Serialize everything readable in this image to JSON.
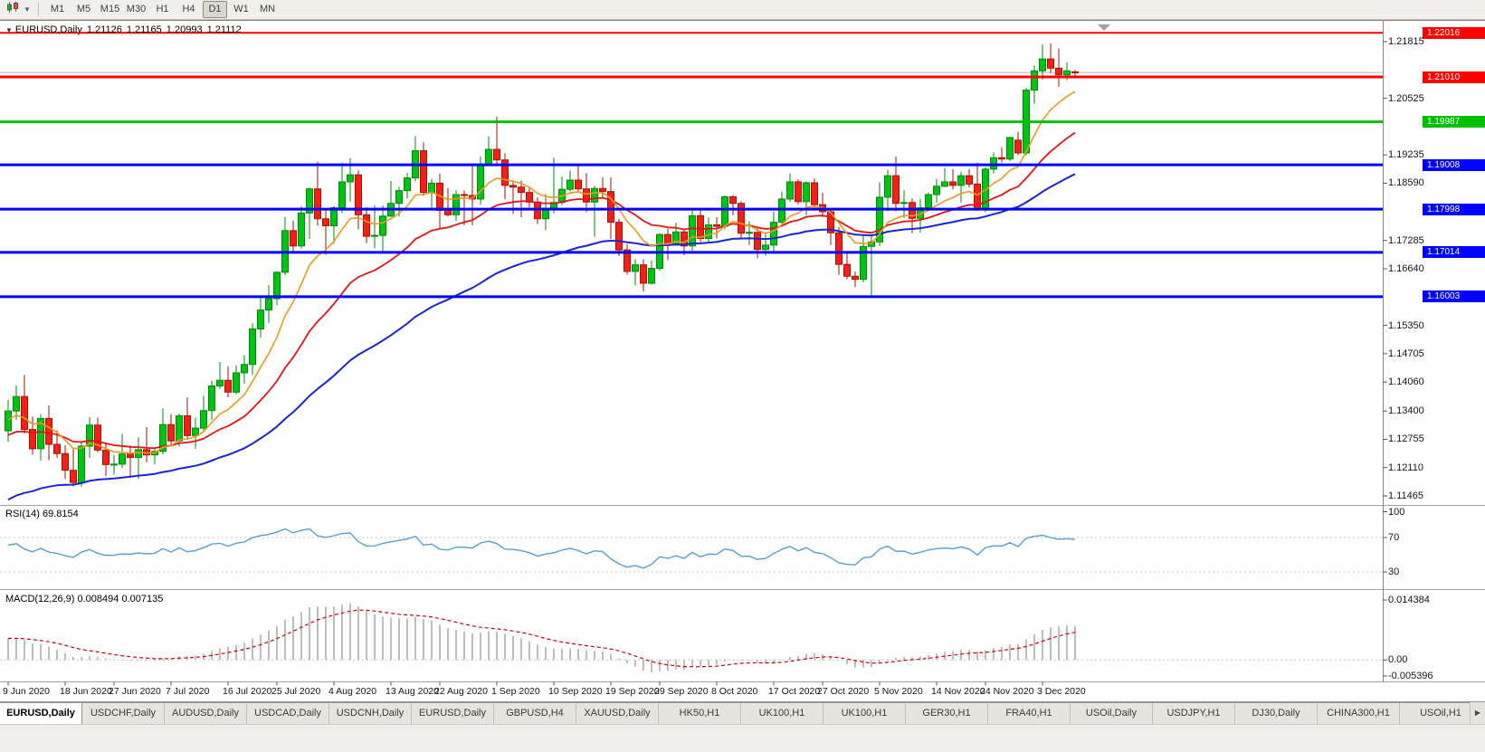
{
  "toolbar": {
    "chart_type_icon": "candlestick-chart-icon",
    "dropdown_icon": "caret-down",
    "timeframes": [
      {
        "label": "M1",
        "active": false
      },
      {
        "label": "M5",
        "active": false
      },
      {
        "label": "M15",
        "active": false
      },
      {
        "label": "M30",
        "active": false
      },
      {
        "label": "H1",
        "active": false
      },
      {
        "label": "H4",
        "active": false
      },
      {
        "label": "D1",
        "active": true
      },
      {
        "label": "W1",
        "active": false
      },
      {
        "label": "MN",
        "active": false
      }
    ]
  },
  "chart": {
    "dropdown_arrow": "▼",
    "symbol": "EURUSD,Daily",
    "open": "1.21126",
    "high": "1.21165",
    "low": "1.20993",
    "close": "1.21112"
  },
  "price_scale": {
    "ticks": [
      "1.21815",
      "1.20525",
      "1.19235",
      "1.18590",
      "1.17285",
      "1.16640",
      "1.15350",
      "1.14705",
      "1.14060",
      "1.13400",
      "1.12755",
      "1.12110",
      "1.11465"
    ]
  },
  "hlines": [
    {
      "price": 1.22016,
      "label": "1.22016",
      "color": "#ff0000",
      "width": 2
    },
    {
      "price": 1.2101,
      "label": "1.21010",
      "color": "#ff0000",
      "width": 3
    },
    {
      "price": 1.19987,
      "label": "1.19987",
      "color": "#00c000",
      "width": 3
    },
    {
      "price": 1.19008,
      "label": "1.19008",
      "color": "#0000ff",
      "width": 3
    },
    {
      "price": 1.17998,
      "label": "1.17998",
      "color": "#0000ff",
      "width": 3
    },
    {
      "price": 1.17014,
      "label": "1.17014",
      "color": "#0000ff",
      "width": 3
    },
    {
      "price": 1.16003,
      "label": "1.16003",
      "color": "#0000ff",
      "width": 3
    }
  ],
  "indicators": {
    "rsi": {
      "label": "RSI(14)",
      "value": "69.8154",
      "period": 14,
      "scale": [
        "100",
        "70",
        "30"
      ],
      "levels": [
        70,
        30
      ],
      "color": "#569fd3",
      "level_values": [
        100,
        70,
        30
      ]
    },
    "macd": {
      "label": "MACD(12,26,9)",
      "main_value": "0.008494",
      "signal_value": "0.007135",
      "fast": 12,
      "slow": 26,
      "signal": 9,
      "scale_top": "0.014384",
      "scale_zero": "0.00",
      "scale_bottom": "-0.005396",
      "scale_top_value": 0.014384,
      "scale_bottom_value": -0.005396,
      "histogram_color": "#a2a2a2",
      "signal_color": "#d40000"
    }
  },
  "chart_data": {
    "type": "candlestick",
    "symbol": "EURUSD",
    "timeframe": "Daily",
    "up_color": "#00c414",
    "up_stroke": "#008a0c",
    "down_color": "#f52015",
    "down_stroke": "#a81205",
    "bid_price": 1.21112,
    "bid_line_color": "#b6b6b6",
    "ylim": [
      1.1125,
      1.2224
    ],
    "date_labels": [
      "9 Jun 2020",
      "18 Jun 2020",
      "27 Jun 2020",
      "7 Jul 2020",
      "16 Jul 2020",
      "25 Jul 2020",
      "4 Aug 2020",
      "13 Aug 2020",
      "22 Aug 2020",
      "1 Sep 2020",
      "10 Sep 2020",
      "19 Sep 2020",
      "29 Sep 2020",
      "8 Oct 2020",
      "17 Oct 2020",
      "27 Oct 2020",
      "5 Nov 2020",
      "14 Nov 2020",
      "24 Nov 2020",
      "3 Dec 2020"
    ],
    "date_label_bar_indices": [
      0,
      7,
      13,
      20,
      27,
      33,
      40,
      47,
      53,
      60,
      67,
      74,
      80,
      87,
      94,
      100,
      107,
      114,
      120,
      127
    ],
    "moving_averages": [
      {
        "name": "ma-slow",
        "period": 50,
        "seed": 1.113,
        "color": "#1726cf",
        "width": 2
      },
      {
        "name": "ma-mid",
        "period": 22,
        "seed": 1.128,
        "color": "#e01616",
        "width": 1.8
      },
      {
        "name": "ma-fast",
        "period": 9,
        "seed": 1.1315,
        "color": "#ec9a1a",
        "width": 1.6
      }
    ],
    "ohlc": [
      [
        1.1295,
        1.1365,
        1.127,
        1.134
      ],
      [
        1.134,
        1.1398,
        1.132,
        1.1373
      ],
      [
        1.1373,
        1.1422,
        1.1288,
        1.1298
      ],
      [
        1.1298,
        1.1327,
        1.1241,
        1.1254
      ],
      [
        1.1254,
        1.1333,
        1.1227,
        1.1323
      ],
      [
        1.1323,
        1.1353,
        1.1228,
        1.1264
      ],
      [
        1.1264,
        1.1296,
        1.1233,
        1.1243
      ],
      [
        1.1243,
        1.1262,
        1.1185,
        1.1205
      ],
      [
        1.1205,
        1.1255,
        1.1168,
        1.1177
      ],
      [
        1.1177,
        1.1271,
        1.1168,
        1.126
      ],
      [
        1.126,
        1.1326,
        1.1233,
        1.1308
      ],
      [
        1.1308,
        1.1325,
        1.1246,
        1.1251
      ],
      [
        1.1251,
        1.1268,
        1.1192,
        1.1218
      ],
      [
        1.1218,
        1.124,
        1.1195,
        1.1219
      ],
      [
        1.1219,
        1.1288,
        1.121,
        1.1242
      ],
      [
        1.1242,
        1.1262,
        1.1191,
        1.1234
      ],
      [
        1.1234,
        1.128,
        1.1185,
        1.1252
      ],
      [
        1.1252,
        1.1303,
        1.1223,
        1.124
      ],
      [
        1.124,
        1.1254,
        1.1219,
        1.1248
      ],
      [
        1.1248,
        1.1346,
        1.1241,
        1.1309
      ],
      [
        1.1309,
        1.1333,
        1.1259,
        1.1272
      ],
      [
        1.1272,
        1.1334,
        1.1259,
        1.1329
      ],
      [
        1.1329,
        1.1371,
        1.1278,
        1.1284
      ],
      [
        1.1284,
        1.1325,
        1.1254,
        1.1301
      ],
      [
        1.1301,
        1.1375,
        1.1292,
        1.1341
      ],
      [
        1.1341,
        1.1409,
        1.132,
        1.1397
      ],
      [
        1.1397,
        1.1452,
        1.139,
        1.141
      ],
      [
        1.141,
        1.1442,
        1.1371,
        1.1383
      ],
      [
        1.1383,
        1.1444,
        1.1378,
        1.1427
      ],
      [
        1.1427,
        1.1467,
        1.1402,
        1.1446
      ],
      [
        1.1446,
        1.154,
        1.1422,
        1.1527
      ],
      [
        1.1527,
        1.1601,
        1.1507,
        1.157
      ],
      [
        1.157,
        1.1627,
        1.154,
        1.1596
      ],
      [
        1.1596,
        1.1658,
        1.1581,
        1.1656
      ],
      [
        1.1656,
        1.1782,
        1.1649,
        1.1751
      ],
      [
        1.1751,
        1.1774,
        1.1701,
        1.1716
      ],
      [
        1.1716,
        1.1807,
        1.171,
        1.1791
      ],
      [
        1.1791,
        1.1849,
        1.1732,
        1.1846
      ],
      [
        1.1846,
        1.1908,
        1.1762,
        1.1778
      ],
      [
        1.1778,
        1.1797,
        1.1696,
        1.1762
      ],
      [
        1.1762,
        1.1807,
        1.1721,
        1.1803
      ],
      [
        1.1803,
        1.1906,
        1.1791,
        1.1862
      ],
      [
        1.1862,
        1.1916,
        1.1817,
        1.1878
      ],
      [
        1.1878,
        1.1888,
        1.1754,
        1.1787
      ],
      [
        1.1787,
        1.1805,
        1.1722,
        1.1738
      ],
      [
        1.1738,
        1.1808,
        1.1711,
        1.174
      ],
      [
        1.174,
        1.1808,
        1.1701,
        1.1784
      ],
      [
        1.1784,
        1.1864,
        1.1782,
        1.1813
      ],
      [
        1.1813,
        1.1851,
        1.1783,
        1.1842
      ],
      [
        1.1842,
        1.1882,
        1.1824,
        1.1871
      ],
      [
        1.1871,
        1.1966,
        1.1863,
        1.1933
      ],
      [
        1.1933,
        1.1952,
        1.183,
        1.1838
      ],
      [
        1.1838,
        1.1869,
        1.1801,
        1.1859
      ],
      [
        1.1859,
        1.1881,
        1.1754,
        1.1797
      ],
      [
        1.1797,
        1.1848,
        1.1783,
        1.1787
      ],
      [
        1.1787,
        1.1843,
        1.1773,
        1.1833
      ],
      [
        1.1833,
        1.1842,
        1.1763,
        1.1831
      ],
      [
        1.1831,
        1.1903,
        1.1763,
        1.1823
      ],
      [
        1.1823,
        1.192,
        1.181,
        1.1903
      ],
      [
        1.1903,
        1.1966,
        1.1898,
        1.1936
      ],
      [
        1.1936,
        1.2011,
        1.1901,
        1.1912
      ],
      [
        1.1912,
        1.1927,
        1.1822,
        1.1854
      ],
      [
        1.1854,
        1.1865,
        1.1789,
        1.185
      ],
      [
        1.185,
        1.1865,
        1.1781,
        1.1838
      ],
      [
        1.1838,
        1.1849,
        1.1804,
        1.1816
      ],
      [
        1.1816,
        1.1827,
        1.1766,
        1.1778
      ],
      [
        1.1778,
        1.1834,
        1.1752,
        1.1802
      ],
      [
        1.1802,
        1.1917,
        1.179,
        1.1815
      ],
      [
        1.1815,
        1.1874,
        1.1809,
        1.1845
      ],
      [
        1.1845,
        1.1888,
        1.184,
        1.1866
      ],
      [
        1.1866,
        1.19,
        1.1838,
        1.1846
      ],
      [
        1.1846,
        1.1882,
        1.1793,
        1.1816
      ],
      [
        1.1816,
        1.1853,
        1.1737,
        1.1847
      ],
      [
        1.1847,
        1.1872,
        1.1827,
        1.184
      ],
      [
        1.184,
        1.1872,
        1.1732,
        1.177
      ],
      [
        1.177,
        1.1778,
        1.1693,
        1.1707
      ],
      [
        1.1707,
        1.172,
        1.1651,
        1.1658
      ],
      [
        1.1658,
        1.1686,
        1.1626,
        1.1673
      ],
      [
        1.1673,
        1.1686,
        1.1612,
        1.1631
      ],
      [
        1.1631,
        1.1683,
        1.1628,
        1.1665
      ],
      [
        1.1665,
        1.1745,
        1.166,
        1.1742
      ],
      [
        1.1742,
        1.1755,
        1.1684,
        1.172
      ],
      [
        1.172,
        1.1769,
        1.1717,
        1.1748
      ],
      [
        1.1748,
        1.1752,
        1.1695,
        1.1716
      ],
      [
        1.1716,
        1.1797,
        1.1705,
        1.1785
      ],
      [
        1.1785,
        1.1798,
        1.1725,
        1.1733
      ],
      [
        1.1733,
        1.1781,
        1.1725,
        1.1764
      ],
      [
        1.1764,
        1.1782,
        1.1733,
        1.1761
      ],
      [
        1.1761,
        1.1831,
        1.1754,
        1.1828
      ],
      [
        1.1828,
        1.1832,
        1.1786,
        1.1813
      ],
      [
        1.1813,
        1.1818,
        1.1731,
        1.1745
      ],
      [
        1.1745,
        1.1772,
        1.1718,
        1.1747
      ],
      [
        1.1747,
        1.1758,
        1.1688,
        1.1708
      ],
      [
        1.1708,
        1.1747,
        1.1694,
        1.1718
      ],
      [
        1.1718,
        1.1794,
        1.1703,
        1.177
      ],
      [
        1.177,
        1.184,
        1.176,
        1.1823
      ],
      [
        1.1823,
        1.1881,
        1.1817,
        1.1862
      ],
      [
        1.1862,
        1.1868,
        1.1811,
        1.1817
      ],
      [
        1.1817,
        1.1863,
        1.1786,
        1.186
      ],
      [
        1.186,
        1.187,
        1.1803,
        1.181
      ],
      [
        1.181,
        1.1837,
        1.1781,
        1.1794
      ],
      [
        1.1794,
        1.18,
        1.1718,
        1.1746
      ],
      [
        1.1746,
        1.1759,
        1.165,
        1.1674
      ],
      [
        1.1674,
        1.1704,
        1.164,
        1.1647
      ],
      [
        1.1647,
        1.1658,
        1.1622,
        1.164
      ],
      [
        1.164,
        1.174,
        1.1633,
        1.1715
      ],
      [
        1.1715,
        1.174,
        1.1602,
        1.1725
      ],
      [
        1.1725,
        1.1861,
        1.1715,
        1.1827
      ],
      [
        1.1827,
        1.189,
        1.1795,
        1.1876
      ],
      [
        1.1876,
        1.192,
        1.1795,
        1.1813
      ],
      [
        1.1813,
        1.1843,
        1.178,
        1.1815
      ],
      [
        1.1815,
        1.1824,
        1.1745,
        1.1779
      ],
      [
        1.1779,
        1.1823,
        1.1746,
        1.1803
      ],
      [
        1.1803,
        1.1838,
        1.1799,
        1.1833
      ],
      [
        1.1833,
        1.1869,
        1.1814,
        1.1852
      ],
      [
        1.1852,
        1.1894,
        1.185,
        1.1862
      ],
      [
        1.1862,
        1.1891,
        1.1845,
        1.1854
      ],
      [
        1.1854,
        1.1885,
        1.1815,
        1.1876
      ],
      [
        1.1876,
        1.1891,
        1.1849,
        1.1857
      ],
      [
        1.1857,
        1.1906,
        1.1796,
        1.18
      ],
      [
        1.18,
        1.1895,
        1.1793,
        1.1891
      ],
      [
        1.1891,
        1.1929,
        1.1881,
        1.1917
      ],
      [
        1.1917,
        1.1941,
        1.1906,
        1.1914
      ],
      [
        1.1914,
        1.1965,
        1.1909,
        1.1963
      ],
      [
        1.1957,
        1.1976,
        1.1923,
        1.1928
      ],
      [
        1.1928,
        1.2076,
        1.1922,
        1.2071
      ],
      [
        1.2071,
        1.2127,
        1.204,
        1.2115
      ],
      [
        1.2115,
        1.2175,
        1.2095,
        1.2142
      ],
      [
        1.2142,
        1.2177,
        1.211,
        1.2121
      ],
      [
        1.2121,
        1.2166,
        1.2079,
        1.2106
      ],
      [
        1.2106,
        1.2134,
        1.2094,
        1.2115
      ],
      [
        1.21126,
        1.21165,
        1.20993,
        1.21112
      ]
    ]
  },
  "tabs": {
    "scroll_right": "▶",
    "items": [
      {
        "label": "EURUSD,Daily",
        "active": true
      },
      {
        "label": "USDCHF,Daily",
        "active": false
      },
      {
        "label": "AUDUSD,Daily",
        "active": false
      },
      {
        "label": "USDCAD,Daily",
        "active": false
      },
      {
        "label": "USDCNH,Daily",
        "active": false
      },
      {
        "label": "EURUSD,Daily",
        "active": false
      },
      {
        "label": "GBPUSD,H4",
        "active": false
      },
      {
        "label": "XAUUSD,Daily",
        "active": false
      },
      {
        "label": "HK50,H1",
        "active": false
      },
      {
        "label": "UK100,H1",
        "active": false
      },
      {
        "label": "UK100,H1",
        "active": false
      },
      {
        "label": "GER30,H1",
        "active": false
      },
      {
        "label": "FRA40,H1",
        "active": false
      },
      {
        "label": "USOil,Daily",
        "active": false
      },
      {
        "label": "USDJPY,H1",
        "active": false
      },
      {
        "label": "DJ30,Daily",
        "active": false
      },
      {
        "label": "CHINA300,H1",
        "active": false
      },
      {
        "label": "USOil,H1",
        "active": false
      }
    ]
  }
}
